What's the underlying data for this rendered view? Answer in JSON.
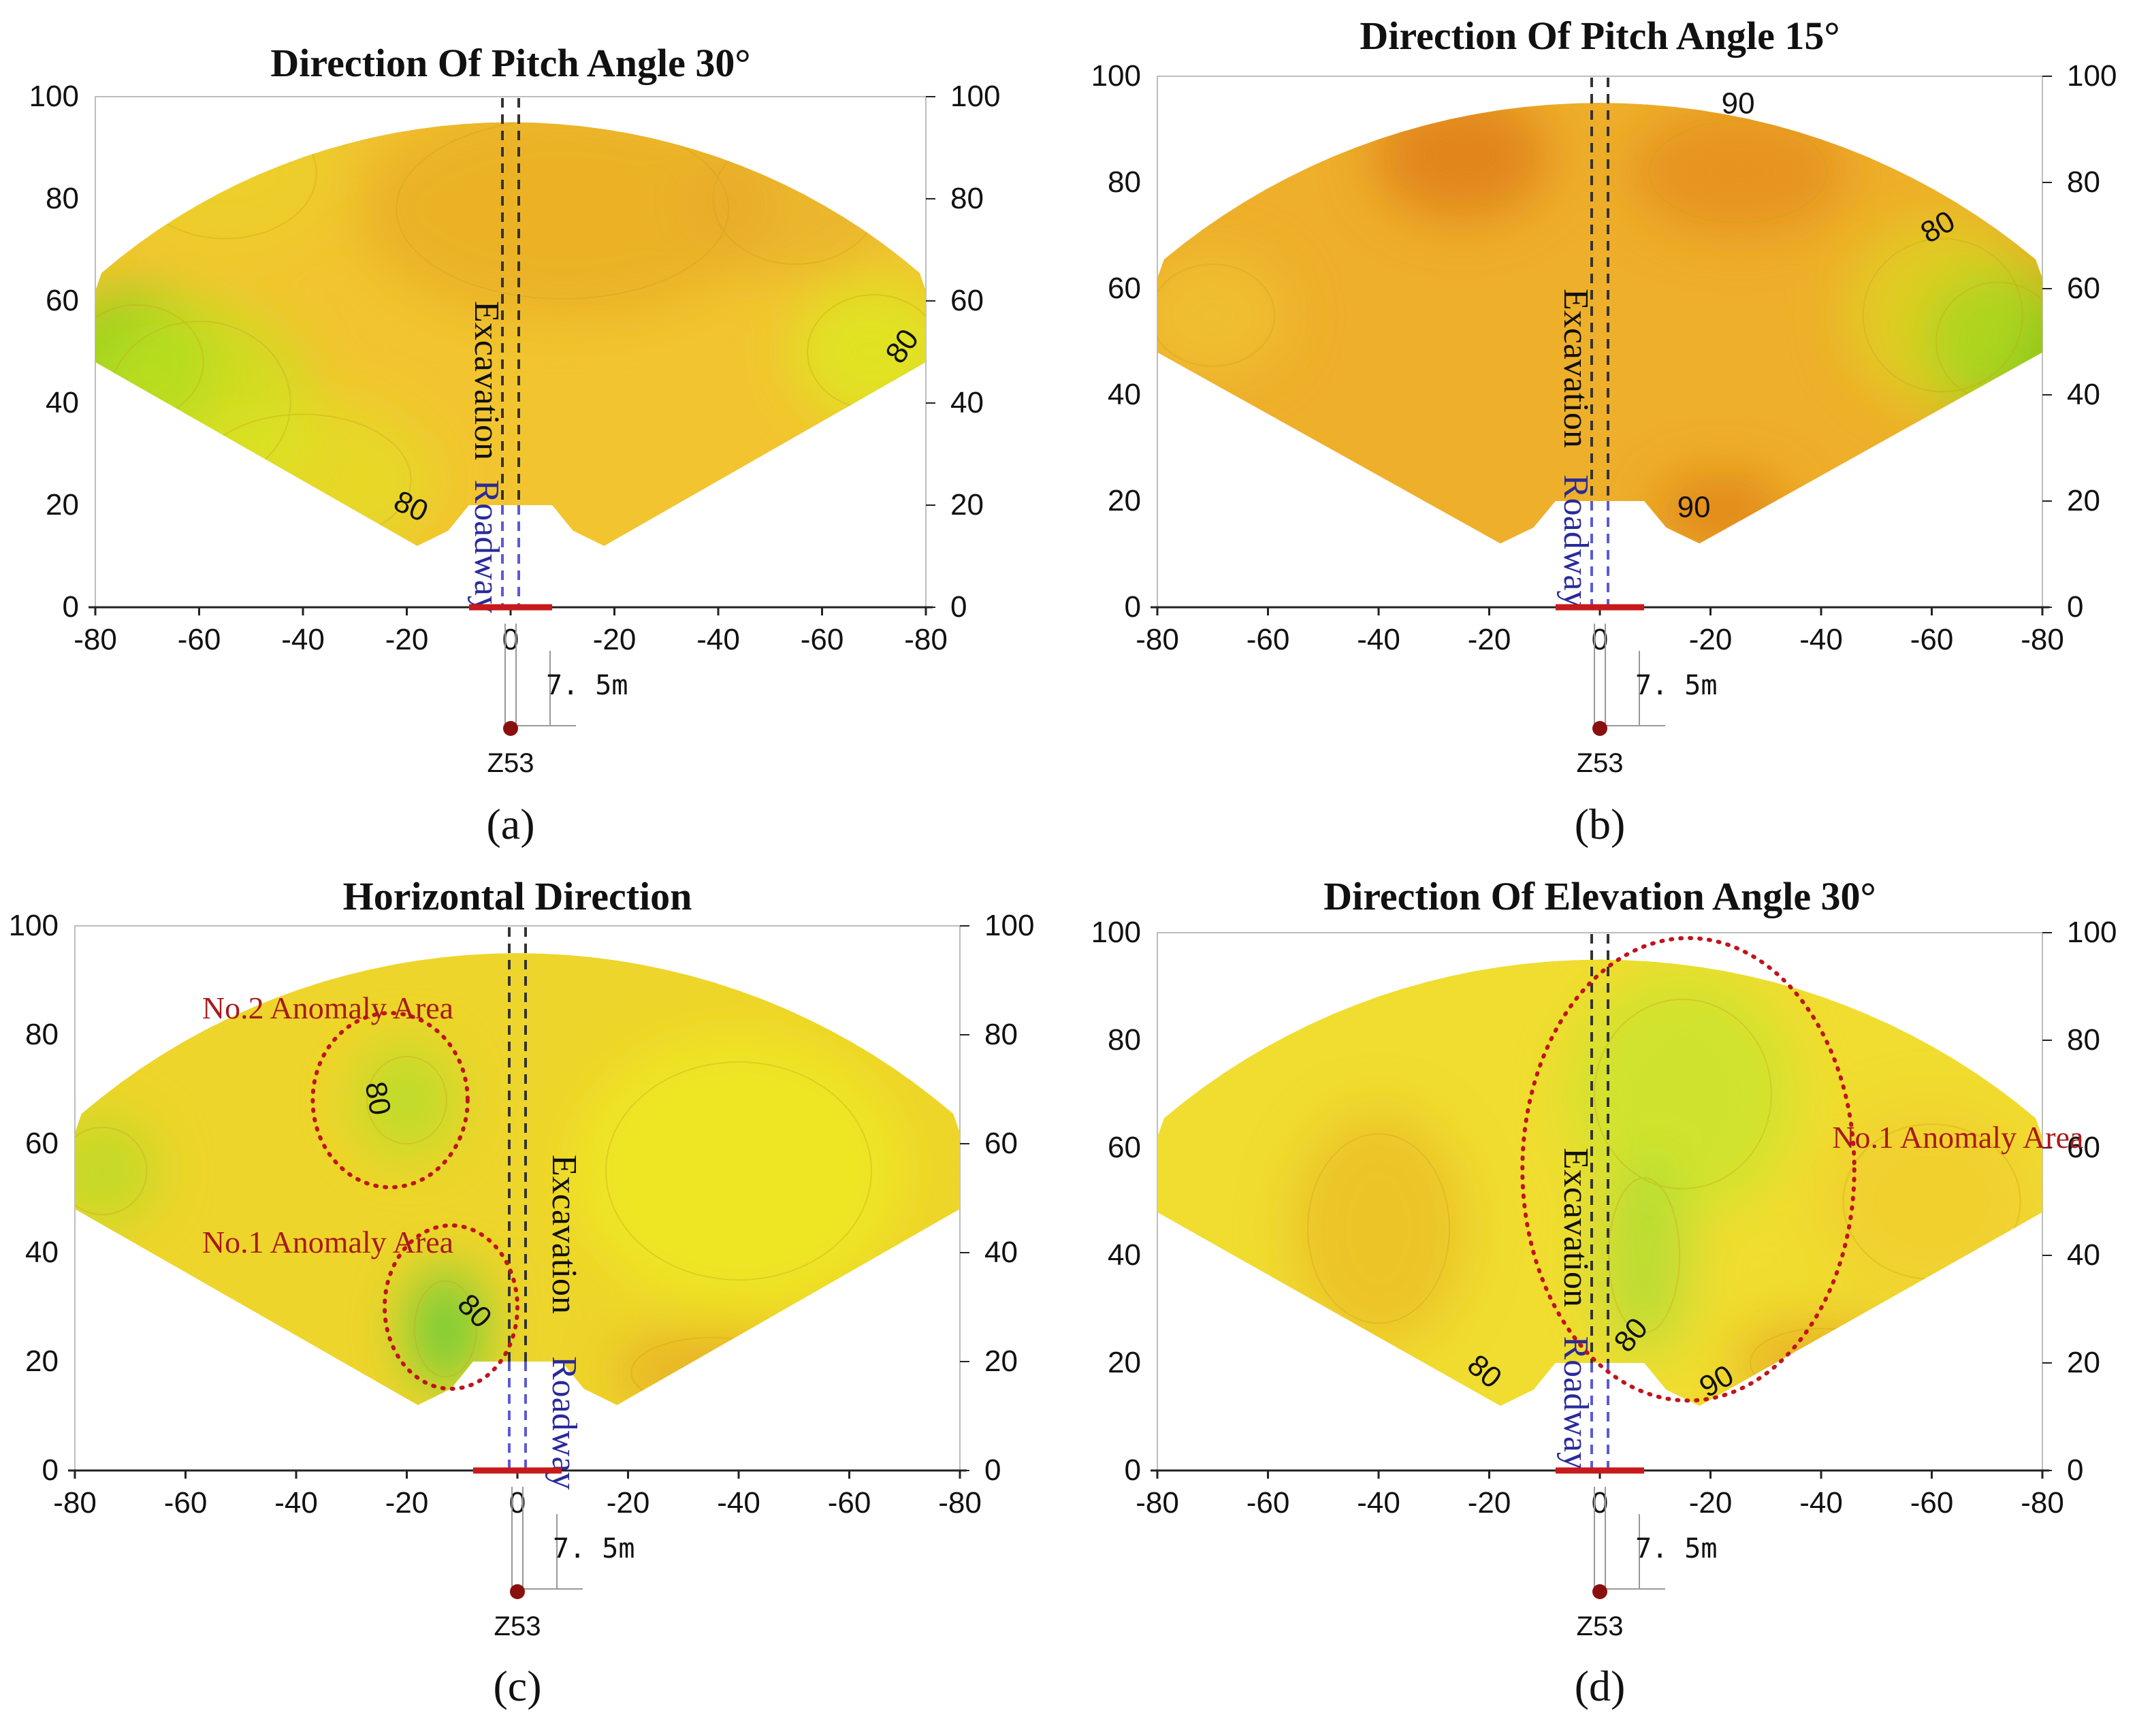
{
  "figure": {
    "colors": {
      "red": "#c8191b",
      "anomaly": "#c0141c",
      "anomaly_text": "#a81a1a",
      "roadway_text": "#2a2a9a",
      "roadway_line": "#5a5ad8",
      "axis": "#222222",
      "frame": "#bdbdbd",
      "z53": "#8a1010"
    },
    "shared": {
      "excavation_label": "Excavation",
      "roadway_label": "Roadway",
      "distance_label": "7. 5m",
      "point_label": "Z53"
    }
  },
  "chart_data": [
    {
      "type": "heatmap",
      "panel_label": "(a)",
      "title": "Direction Of Pitch Angle 30°",
      "x_range": [
        -80,
        80
      ],
      "x_tick_labels": [
        "-80",
        "-60",
        "-40",
        "-20",
        "0",
        "-20",
        "-40",
        "-60",
        "-80"
      ],
      "y_range": [
        0,
        100
      ],
      "y_tick_labels": [
        "0",
        "20",
        "40",
        "60",
        "80",
        "100"
      ],
      "base_color": "#f2c530",
      "contour_labels": [
        {
          "text": "80",
          "x": -20,
          "y": 18,
          "rot": 25
        },
        {
          "text": "80",
          "x": 77,
          "y": 50,
          "rot": -55
        }
      ],
      "anomaly_areas": [],
      "vertical_label_side": "left",
      "blobs": [
        {
          "x": -72,
          "y": 48,
          "rx": 16,
          "ry": 14,
          "color": "#7ed21a",
          "op": 0.85
        },
        {
          "x": -60,
          "y": 40,
          "rx": 22,
          "ry": 20,
          "color": "#c6e31d",
          "op": 0.7
        },
        {
          "x": -40,
          "y": 25,
          "rx": 26,
          "ry": 16,
          "color": "#dfe721",
          "op": 0.55
        },
        {
          "x": 70,
          "y": 50,
          "rx": 16,
          "ry": 14,
          "color": "#dde71f",
          "op": 0.85
        },
        {
          "x": 10,
          "y": 78,
          "rx": 40,
          "ry": 22,
          "color": "#e6a21e",
          "op": 0.55
        },
        {
          "x": -55,
          "y": 85,
          "rx": 22,
          "ry": 16,
          "color": "#e9d32a",
          "op": 0.6
        },
        {
          "x": 55,
          "y": 80,
          "rx": 20,
          "ry": 16,
          "color": "#e5a72a",
          "op": 0.5
        }
      ]
    },
    {
      "type": "heatmap",
      "panel_label": "(b)",
      "title": "Direction Of Pitch Angle 15°",
      "x_range": [
        -80,
        80
      ],
      "x_tick_labels": [
        "-80",
        "-60",
        "-40",
        "-20",
        "0",
        "-20",
        "-40",
        "-60",
        "-80"
      ],
      "y_range": [
        0,
        100
      ],
      "y_tick_labels": [
        "0",
        "20",
        "40",
        "60",
        "80",
        "100"
      ],
      "base_color": "#eeaf2a",
      "contour_labels": [
        {
          "text": "90",
          "x": 25,
          "y": 93,
          "rot": 0
        },
        {
          "text": "80",
          "x": 62,
          "y": 70,
          "rot": -30
        },
        {
          "text": "90",
          "x": 17,
          "y": 17,
          "rot": 0
        }
      ],
      "anomaly_areas": [],
      "vertical_label_side": "left",
      "blobs": [
        {
          "x": -25,
          "y": 85,
          "rx": 16,
          "ry": 12,
          "color": "#df7e14",
          "op": 0.85
        },
        {
          "x": 25,
          "y": 82,
          "rx": 20,
          "ry": 12,
          "color": "#e2881a",
          "op": 0.7
        },
        {
          "x": 72,
          "y": 50,
          "rx": 14,
          "ry": 14,
          "color": "#5fc81a",
          "op": 0.9
        },
        {
          "x": 62,
          "y": 55,
          "rx": 18,
          "ry": 18,
          "color": "#d9df22",
          "op": 0.6
        },
        {
          "x": 22,
          "y": 18,
          "rx": 12,
          "ry": 7,
          "color": "#de7a16",
          "op": 0.75
        },
        {
          "x": -70,
          "y": 55,
          "rx": 14,
          "ry": 12,
          "color": "#f2cd38",
          "op": 0.5
        }
      ]
    },
    {
      "type": "heatmap",
      "panel_label": "(c)",
      "title": "Horizontal  Direction",
      "x_range": [
        -80,
        80
      ],
      "x_tick_labels": [
        "-80",
        "-60",
        "-40",
        "-20",
        "0",
        "-20",
        "-40",
        "-60",
        "-80"
      ],
      "y_range": [
        0,
        100
      ],
      "y_tick_labels": [
        "0",
        "20",
        "40",
        "60",
        "80",
        "100"
      ],
      "base_color": "#eed52b",
      "contour_labels": [
        {
          "text": "80",
          "x": -27,
          "y": 68,
          "rot": 80
        },
        {
          "text": "80",
          "x": -9,
          "y": 28,
          "rot": 45
        }
      ],
      "anomaly_areas": [
        {
          "label": "No.2 Anomaly Area",
          "cx": -23,
          "cy": 68,
          "rx": 14,
          "ry": 16,
          "label_x": -57,
          "label_y": 83
        },
        {
          "label": "No.1 Anomaly Area",
          "cx": -12,
          "cy": 30,
          "rx": 12,
          "ry": 15,
          "label_x": -57,
          "label_y": 40
        }
      ],
      "vertical_label_side": "right",
      "blobs": [
        {
          "x": -20,
          "y": 68,
          "rx": 9,
          "ry": 10,
          "color": "#b5dd2c",
          "op": 0.85
        },
        {
          "x": -13,
          "y": 26,
          "rx": 7,
          "ry": 11,
          "color": "#63cb3a",
          "op": 0.85
        },
        {
          "x": 40,
          "y": 55,
          "rx": 30,
          "ry": 25,
          "color": "#eef122",
          "op": 0.6
        },
        {
          "x": 35,
          "y": 18,
          "rx": 18,
          "ry": 8,
          "color": "#e39a20",
          "op": 0.55
        },
        {
          "x": -75,
          "y": 55,
          "rx": 10,
          "ry": 10,
          "color": "#b2dc24",
          "op": 0.7
        }
      ]
    },
    {
      "type": "heatmap",
      "panel_label": "(d)",
      "title": "Direction Of Elevation Angle 30°",
      "x_range": [
        -80,
        80
      ],
      "x_tick_labels": [
        "-80",
        "-60",
        "-40",
        "-20",
        "0",
        "-20",
        "-40",
        "-60",
        "-80"
      ],
      "y_range": [
        0,
        100
      ],
      "y_tick_labels": [
        "0",
        "20",
        "40",
        "60",
        "80",
        "100"
      ],
      "base_color": "#f0dd30",
      "contour_labels": [
        {
          "text": "80",
          "x": -22,
          "y": 17,
          "rot": 40
        },
        {
          "text": "80",
          "x": 7,
          "y": 24,
          "rot": -50
        },
        {
          "text": "90",
          "x": 22,
          "y": 15,
          "rot": -30
        }
      ],
      "anomaly_areas": [
        {
          "label": "No.1 Anomaly Area",
          "cx": 16,
          "cy": 56,
          "rx": 30,
          "ry": 43,
          "label_x": 42,
          "label_y": 60
        }
      ],
      "vertical_label_side": "left",
      "blobs": [
        {
          "x": 15,
          "y": 70,
          "rx": 20,
          "ry": 22,
          "color": "#c4e42d",
          "op": 0.75
        },
        {
          "x": 8,
          "y": 40,
          "rx": 8,
          "ry": 18,
          "color": "#aadc34",
          "op": 0.75
        },
        {
          "x": -40,
          "y": 45,
          "rx": 16,
          "ry": 22,
          "color": "#eaae22",
          "op": 0.55
        },
        {
          "x": 40,
          "y": 20,
          "rx": 16,
          "ry": 8,
          "color": "#e49a1f",
          "op": 0.6
        },
        {
          "x": 60,
          "y": 50,
          "rx": 20,
          "ry": 18,
          "color": "#f1c12a",
          "op": 0.45
        }
      ]
    }
  ]
}
